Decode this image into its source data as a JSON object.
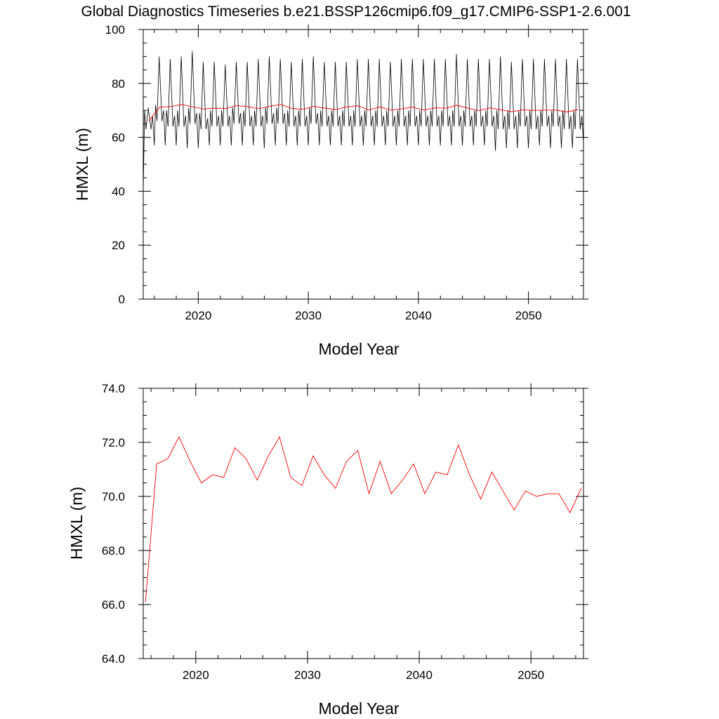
{
  "figure": {
    "title": "Global Diagnostics Timeseries b.e21.BSSP126cmip6.f09_g17.CMIP6-SSP1-2.6.001"
  },
  "chart_data": [
    {
      "type": "line",
      "xlabel": "Model Year",
      "ylabel": "HMXL (m)",
      "xlim": [
        2015,
        2055
      ],
      "ylim": [
        0,
        100
      ],
      "xticks": [
        2020,
        2030,
        2040,
        2050
      ],
      "xtick_labels": [
        "2020",
        "2030",
        "2040",
        "2050"
      ],
      "yticks": [
        0,
        20,
        40,
        60,
        80,
        100
      ],
      "ytick_labels": [
        "0",
        "20",
        "40",
        "60",
        "80",
        "100"
      ],
      "series": [
        {
          "kind": "monthly",
          "color": "#000000",
          "years": [
            2015,
            2016,
            2017,
            2018,
            2019,
            2020,
            2021,
            2022,
            2023,
            2024,
            2025,
            2026,
            2027,
            2028,
            2029,
            2030,
            2031,
            2032,
            2033,
            2034,
            2035,
            2036,
            2037,
            2038,
            2039,
            2040,
            2041,
            2042,
            2043,
            2044,
            2045,
            2046,
            2047,
            2048,
            2049,
            2050,
            2051,
            2052,
            2053,
            2054
          ],
          "annual_max": [
            71,
            90,
            89,
            90,
            92,
            88,
            88,
            87,
            88,
            88,
            89,
            90,
            89,
            88,
            89,
            90,
            88,
            88,
            88,
            89,
            89,
            89,
            88,
            89,
            89,
            89,
            89,
            89,
            91,
            89,
            89,
            89,
            90,
            88,
            89,
            89,
            89,
            89,
            89,
            89
          ],
          "annual_min": [
            40,
            57,
            57,
            57,
            56,
            56,
            57,
            57,
            57,
            57,
            57,
            56,
            57,
            57,
            57,
            57,
            57,
            57,
            57,
            57,
            57,
            57,
            57,
            57,
            57,
            57,
            57,
            57,
            57,
            57,
            57,
            57,
            55,
            56,
            56,
            56,
            57,
            56,
            56,
            56
          ],
          "secondary_high": [
            70,
            72,
            70,
            70,
            71,
            69,
            70,
            70,
            71,
            70,
            70,
            71,
            71,
            70,
            70,
            71,
            70,
            70,
            70,
            70,
            70,
            70,
            70,
            70,
            70,
            70,
            70,
            70,
            70,
            70,
            70,
            70,
            70,
            70,
            70,
            70,
            70,
            70,
            70,
            70
          ],
          "secondary_low": [
            63,
            66,
            64,
            64,
            65,
            63,
            64,
            64,
            65,
            64,
            64,
            65,
            65,
            64,
            64,
            65,
            64,
            64,
            64,
            64,
            64,
            64,
            64,
            64,
            64,
            64,
            64,
            64,
            64,
            64,
            64,
            64,
            63,
            63,
            64,
            63,
            64,
            64,
            63,
            63
          ]
        },
        {
          "kind": "annual",
          "color": "#ff0000",
          "x": [
            2015.5,
            2016.5,
            2017.5,
            2018.5,
            2019.5,
            2020.5,
            2021.5,
            2022.5,
            2023.5,
            2024.5,
            2025.5,
            2026.5,
            2027.5,
            2028.5,
            2029.5,
            2030.5,
            2031.5,
            2032.5,
            2033.5,
            2034.5,
            2035.5,
            2036.5,
            2037.5,
            2038.5,
            2039.5,
            2040.5,
            2041.5,
            2042.5,
            2043.5,
            2044.5,
            2045.5,
            2046.5,
            2047.5,
            2048.5,
            2049.5,
            2050.5,
            2051.5,
            2052.5,
            2053.5,
            2054.5
          ],
          "y": [
            66.1,
            71.2,
            71.4,
            72.2,
            71.3,
            70.5,
            70.8,
            70.7,
            71.8,
            71.4,
            70.6,
            71.5,
            72.2,
            70.7,
            70.4,
            71.5,
            70.8,
            70.3,
            71.3,
            71.7,
            70.1,
            71.3,
            70.1,
            70.6,
            71.2,
            70.1,
            70.9,
            70.8,
            71.9,
            70.8,
            69.9,
            70.9,
            70.2,
            69.5,
            70.2,
            70.0,
            70.1,
            70.1,
            69.4,
            70.3
          ]
        }
      ]
    },
    {
      "type": "line",
      "xlabel": "Model Year",
      "ylabel": "HMXL (m)",
      "xlim": [
        2015.3,
        2054.7
      ],
      "ylim": [
        64,
        74
      ],
      "xticks": [
        2020,
        2030,
        2040,
        2050
      ],
      "xtick_labels": [
        "2020",
        "2030",
        "2040",
        "2050"
      ],
      "yticks": [
        64,
        66,
        68,
        70,
        72,
        74
      ],
      "ytick_labels": [
        "64.0",
        "66.0",
        "68.0",
        "70.0",
        "72.0",
        "74.0"
      ],
      "series": [
        {
          "kind": "annual",
          "color": "#ff0000",
          "x": [
            2015.5,
            2016.5,
            2017.5,
            2018.5,
            2019.5,
            2020.5,
            2021.5,
            2022.5,
            2023.5,
            2024.5,
            2025.5,
            2026.5,
            2027.5,
            2028.5,
            2029.5,
            2030.5,
            2031.5,
            2032.5,
            2033.5,
            2034.5,
            2035.5,
            2036.5,
            2037.5,
            2038.5,
            2039.5,
            2040.5,
            2041.5,
            2042.5,
            2043.5,
            2044.5,
            2045.5,
            2046.5,
            2047.5,
            2048.5,
            2049.5,
            2050.5,
            2051.5,
            2052.5,
            2053.5,
            2054.5
          ],
          "y": [
            66.1,
            71.2,
            71.4,
            72.2,
            71.3,
            70.5,
            70.8,
            70.7,
            71.8,
            71.4,
            70.6,
            71.5,
            72.2,
            70.7,
            70.4,
            71.5,
            70.8,
            70.3,
            71.3,
            71.7,
            70.1,
            71.3,
            70.1,
            70.6,
            71.2,
            70.1,
            70.9,
            70.8,
            71.9,
            70.8,
            69.9,
            70.9,
            70.2,
            69.5,
            70.2,
            70.0,
            70.1,
            70.1,
            69.4,
            70.3
          ]
        }
      ]
    }
  ]
}
